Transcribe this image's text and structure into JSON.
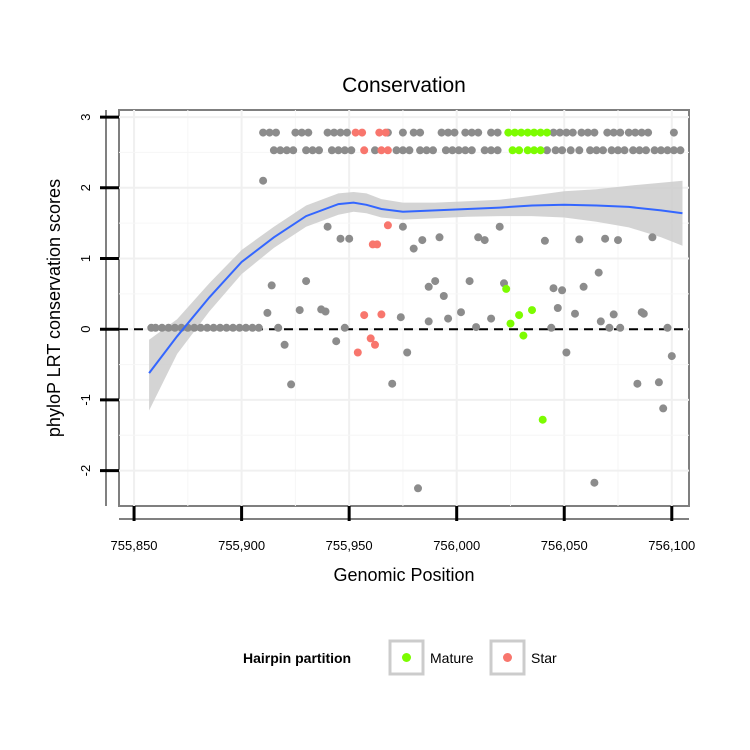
{
  "chart_data": {
    "type": "scatter",
    "title": "Conservation",
    "xlabel": "Genomic Position",
    "ylabel": "phyloP LRT conservation scores",
    "xlim": [
      755843,
      756108
    ],
    "ylim": [
      -2.5,
      3.1
    ],
    "xticks": [
      755850,
      755900,
      755950,
      756000,
      756050,
      756100
    ],
    "xtick_labels": [
      "755,850",
      "755,900",
      "755,950",
      "756,000",
      "756,050",
      "756,100"
    ],
    "yticks": [
      -2,
      -1,
      0,
      1,
      2,
      3
    ],
    "ytick_labels": [
      "-2",
      "-1",
      "0",
      "1",
      "2",
      "3"
    ],
    "grid": true,
    "reference_line": {
      "y": 0,
      "style": "dashed",
      "color": "#000000"
    },
    "legend": {
      "title": "Hairpin partition",
      "position": "bottom",
      "entries": [
        {
          "label": "Mature",
          "color": "#7CFC00"
        },
        {
          "label": "Star",
          "color": "#F8766D"
        }
      ]
    },
    "colors": {
      "other": "#8C8C8C",
      "Mature": "#7CFC00",
      "Star": "#F8766D",
      "smooth": "#3366FF",
      "band": "#CCCCCC"
    },
    "smooth": {
      "x": [
        755857,
        755870,
        755885,
        755900,
        755915,
        755930,
        755945,
        755952,
        755958,
        755965,
        755975,
        755990,
        756005,
        756020,
        756035,
        756050,
        756065,
        756080,
        756095,
        756105
      ],
      "y": [
        -0.62,
        -0.1,
        0.45,
        0.95,
        1.3,
        1.6,
        1.77,
        1.79,
        1.76,
        1.7,
        1.66,
        1.68,
        1.7,
        1.72,
        1.75,
        1.76,
        1.75,
        1.73,
        1.68,
        1.64
      ],
      "lower": [
        -1.15,
        -0.35,
        0.25,
        0.78,
        1.15,
        1.45,
        1.62,
        1.66,
        1.64,
        1.58,
        1.55,
        1.57,
        1.59,
        1.6,
        1.6,
        1.58,
        1.52,
        1.44,
        1.3,
        1.18
      ],
      "upper": [
        -0.15,
        0.14,
        0.65,
        1.12,
        1.45,
        1.75,
        1.92,
        1.94,
        1.92,
        1.84,
        1.79,
        1.79,
        1.81,
        1.83,
        1.89,
        1.95,
        1.98,
        2.03,
        2.07,
        2.1
      ]
    },
    "series": [
      {
        "name": "Other",
        "points": [
          [
            755858,
            0.02
          ],
          [
            755860,
            0.02
          ],
          [
            755863,
            0.02
          ],
          [
            755866,
            0.02
          ],
          [
            755869,
            0.02
          ],
          [
            755872,
            0.02
          ],
          [
            755875,
            0.02
          ],
          [
            755878,
            0.02
          ],
          [
            755881,
            0.02
          ],
          [
            755884,
            0.02
          ],
          [
            755887,
            0.02
          ],
          [
            755890,
            0.02
          ],
          [
            755893,
            0.02
          ],
          [
            755896,
            0.02
          ],
          [
            755899,
            0.02
          ],
          [
            755902,
            0.02
          ],
          [
            755905,
            0.02
          ],
          [
            755908,
            0.02
          ],
          [
            755910,
            2.78
          ],
          [
            755913,
            2.78
          ],
          [
            755916,
            2.78
          ],
          [
            755925,
            2.78
          ],
          [
            755928,
            2.78
          ],
          [
            755931,
            2.78
          ],
          [
            755940,
            2.78
          ],
          [
            755943,
            2.78
          ],
          [
            755946,
            2.78
          ],
          [
            755949,
            2.78
          ],
          [
            755968,
            2.78
          ],
          [
            755975,
            2.78
          ],
          [
            755980,
            2.78
          ],
          [
            755983,
            2.78
          ],
          [
            755993,
            2.78
          ],
          [
            755996,
            2.78
          ],
          [
            755999,
            2.78
          ],
          [
            756004,
            2.78
          ],
          [
            756007,
            2.78
          ],
          [
            756010,
            2.78
          ],
          [
            756016,
            2.78
          ],
          [
            756019,
            2.78
          ],
          [
            756045,
            2.78
          ],
          [
            756048,
            2.78
          ],
          [
            756051,
            2.78
          ],
          [
            756054,
            2.78
          ],
          [
            756058,
            2.78
          ],
          [
            756061,
            2.78
          ],
          [
            756064,
            2.78
          ],
          [
            756070,
            2.78
          ],
          [
            756073,
            2.78
          ],
          [
            756076,
            2.78
          ],
          [
            756080,
            2.78
          ],
          [
            756083,
            2.78
          ],
          [
            756086,
            2.78
          ],
          [
            756089,
            2.78
          ],
          [
            756101,
            2.78
          ],
          [
            755915,
            2.53
          ],
          [
            755918,
            2.53
          ],
          [
            755921,
            2.53
          ],
          [
            755924,
            2.53
          ],
          [
            755930,
            2.53
          ],
          [
            755933,
            2.53
          ],
          [
            755936,
            2.53
          ],
          [
            755942,
            2.53
          ],
          [
            755945,
            2.53
          ],
          [
            755948,
            2.53
          ],
          [
            755951,
            2.53
          ],
          [
            755962,
            2.53
          ],
          [
            755972,
            2.53
          ],
          [
            755975,
            2.53
          ],
          [
            755978,
            2.53
          ],
          [
            755983,
            2.53
          ],
          [
            755986,
            2.53
          ],
          [
            755989,
            2.53
          ],
          [
            755995,
            2.53
          ],
          [
            755998,
            2.53
          ],
          [
            756001,
            2.53
          ],
          [
            756004,
            2.53
          ],
          [
            756007,
            2.53
          ],
          [
            756013,
            2.53
          ],
          [
            756016,
            2.53
          ],
          [
            756019,
            2.53
          ],
          [
            756042,
            2.53
          ],
          [
            756046,
            2.53
          ],
          [
            756049,
            2.53
          ],
          [
            756053,
            2.53
          ],
          [
            756057,
            2.53
          ],
          [
            756062,
            2.53
          ],
          [
            756065,
            2.53
          ],
          [
            756068,
            2.53
          ],
          [
            756072,
            2.53
          ],
          [
            756075,
            2.53
          ],
          [
            756078,
            2.53
          ],
          [
            756082,
            2.53
          ],
          [
            756085,
            2.53
          ],
          [
            756088,
            2.53
          ],
          [
            756092,
            2.53
          ],
          [
            756095,
            2.53
          ],
          [
            756098,
            2.53
          ],
          [
            756101,
            2.53
          ],
          [
            756104,
            2.53
          ],
          [
            755910,
            2.1
          ],
          [
            755914,
            0.62
          ],
          [
            755912,
            0.23
          ],
          [
            755917,
            0.02
          ],
          [
            755920,
            -0.22
          ],
          [
            755923,
            -0.78
          ],
          [
            755927,
            0.27
          ],
          [
            755930,
            0.68
          ],
          [
            755937,
            0.28
          ],
          [
            755939,
            0.25
          ],
          [
            755940,
            1.45
          ],
          [
            755944,
            -0.17
          ],
          [
            755946,
            1.28
          ],
          [
            755950,
            1.28
          ],
          [
            755948,
            0.02
          ],
          [
            755970,
            -0.77
          ],
          [
            755974,
            0.17
          ],
          [
            755975,
            1.45
          ],
          [
            755977,
            -0.33
          ],
          [
            755980,
            1.14
          ],
          [
            755984,
            1.26
          ],
          [
            755982,
            -2.25
          ],
          [
            755987,
            0.6
          ],
          [
            755987,
            0.11
          ],
          [
            755990,
            0.68
          ],
          [
            755992,
            1.3
          ],
          [
            755994,
            0.47
          ],
          [
            755996,
            0.15
          ],
          [
            756002,
            0.24
          ],
          [
            756006,
            0.68
          ],
          [
            756009,
            0.03
          ],
          [
            756010,
            1.3
          ],
          [
            756013,
            1.26
          ],
          [
            756016,
            0.15
          ],
          [
            756020,
            1.45
          ],
          [
            756022,
            0.65
          ],
          [
            756041,
            1.25
          ],
          [
            756044,
            0.02
          ],
          [
            756045,
            0.58
          ],
          [
            756047,
            0.3
          ],
          [
            756049,
            0.55
          ],
          [
            756051,
            -0.33
          ],
          [
            756055,
            0.22
          ],
          [
            756057,
            1.27
          ],
          [
            756059,
            0.6
          ],
          [
            756064,
            -2.17
          ],
          [
            756066,
            0.8
          ],
          [
            756067,
            0.11
          ],
          [
            756069,
            1.28
          ],
          [
            756071,
            0.02
          ],
          [
            756073,
            0.21
          ],
          [
            756075,
            1.26
          ],
          [
            756076,
            0.02
          ],
          [
            756084,
            -0.77
          ],
          [
            756086,
            0.24
          ],
          [
            756087,
            0.22
          ],
          [
            756091,
            1.3
          ],
          [
            756094,
            -0.75
          ],
          [
            756096,
            -1.12
          ],
          [
            756098,
            0.02
          ],
          [
            756100,
            -0.38
          ]
        ]
      },
      {
        "name": "Mature",
        "points": [
          [
            756024,
            2.78
          ],
          [
            756027,
            2.78
          ],
          [
            756030,
            2.78
          ],
          [
            756033,
            2.78
          ],
          [
            756036,
            2.78
          ],
          [
            756039,
            2.78
          ],
          [
            756042,
            2.78
          ],
          [
            756026,
            2.53
          ],
          [
            756029,
            2.53
          ],
          [
            756033,
            2.53
          ],
          [
            756036,
            2.53
          ],
          [
            756039,
            2.53
          ],
          [
            756023,
            0.57
          ],
          [
            756025,
            0.08
          ],
          [
            756029,
            0.2
          ],
          [
            756031,
            -0.09
          ],
          [
            756035,
            0.27
          ],
          [
            756040,
            -1.28
          ]
        ]
      },
      {
        "name": "Star",
        "points": [
          [
            755953,
            2.78
          ],
          [
            755956,
            2.78
          ],
          [
            755964,
            2.78
          ],
          [
            755967,
            2.78
          ],
          [
            755957,
            2.53
          ],
          [
            755965,
            2.53
          ],
          [
            755968,
            2.53
          ],
          [
            755954,
            -0.33
          ],
          [
            755957,
            0.2
          ],
          [
            755960,
            -0.13
          ],
          [
            755961,
            1.2
          ],
          [
            755963,
            1.2
          ],
          [
            755962,
            -0.22
          ],
          [
            755965,
            0.21
          ],
          [
            755968,
            1.47
          ]
        ]
      }
    ]
  }
}
